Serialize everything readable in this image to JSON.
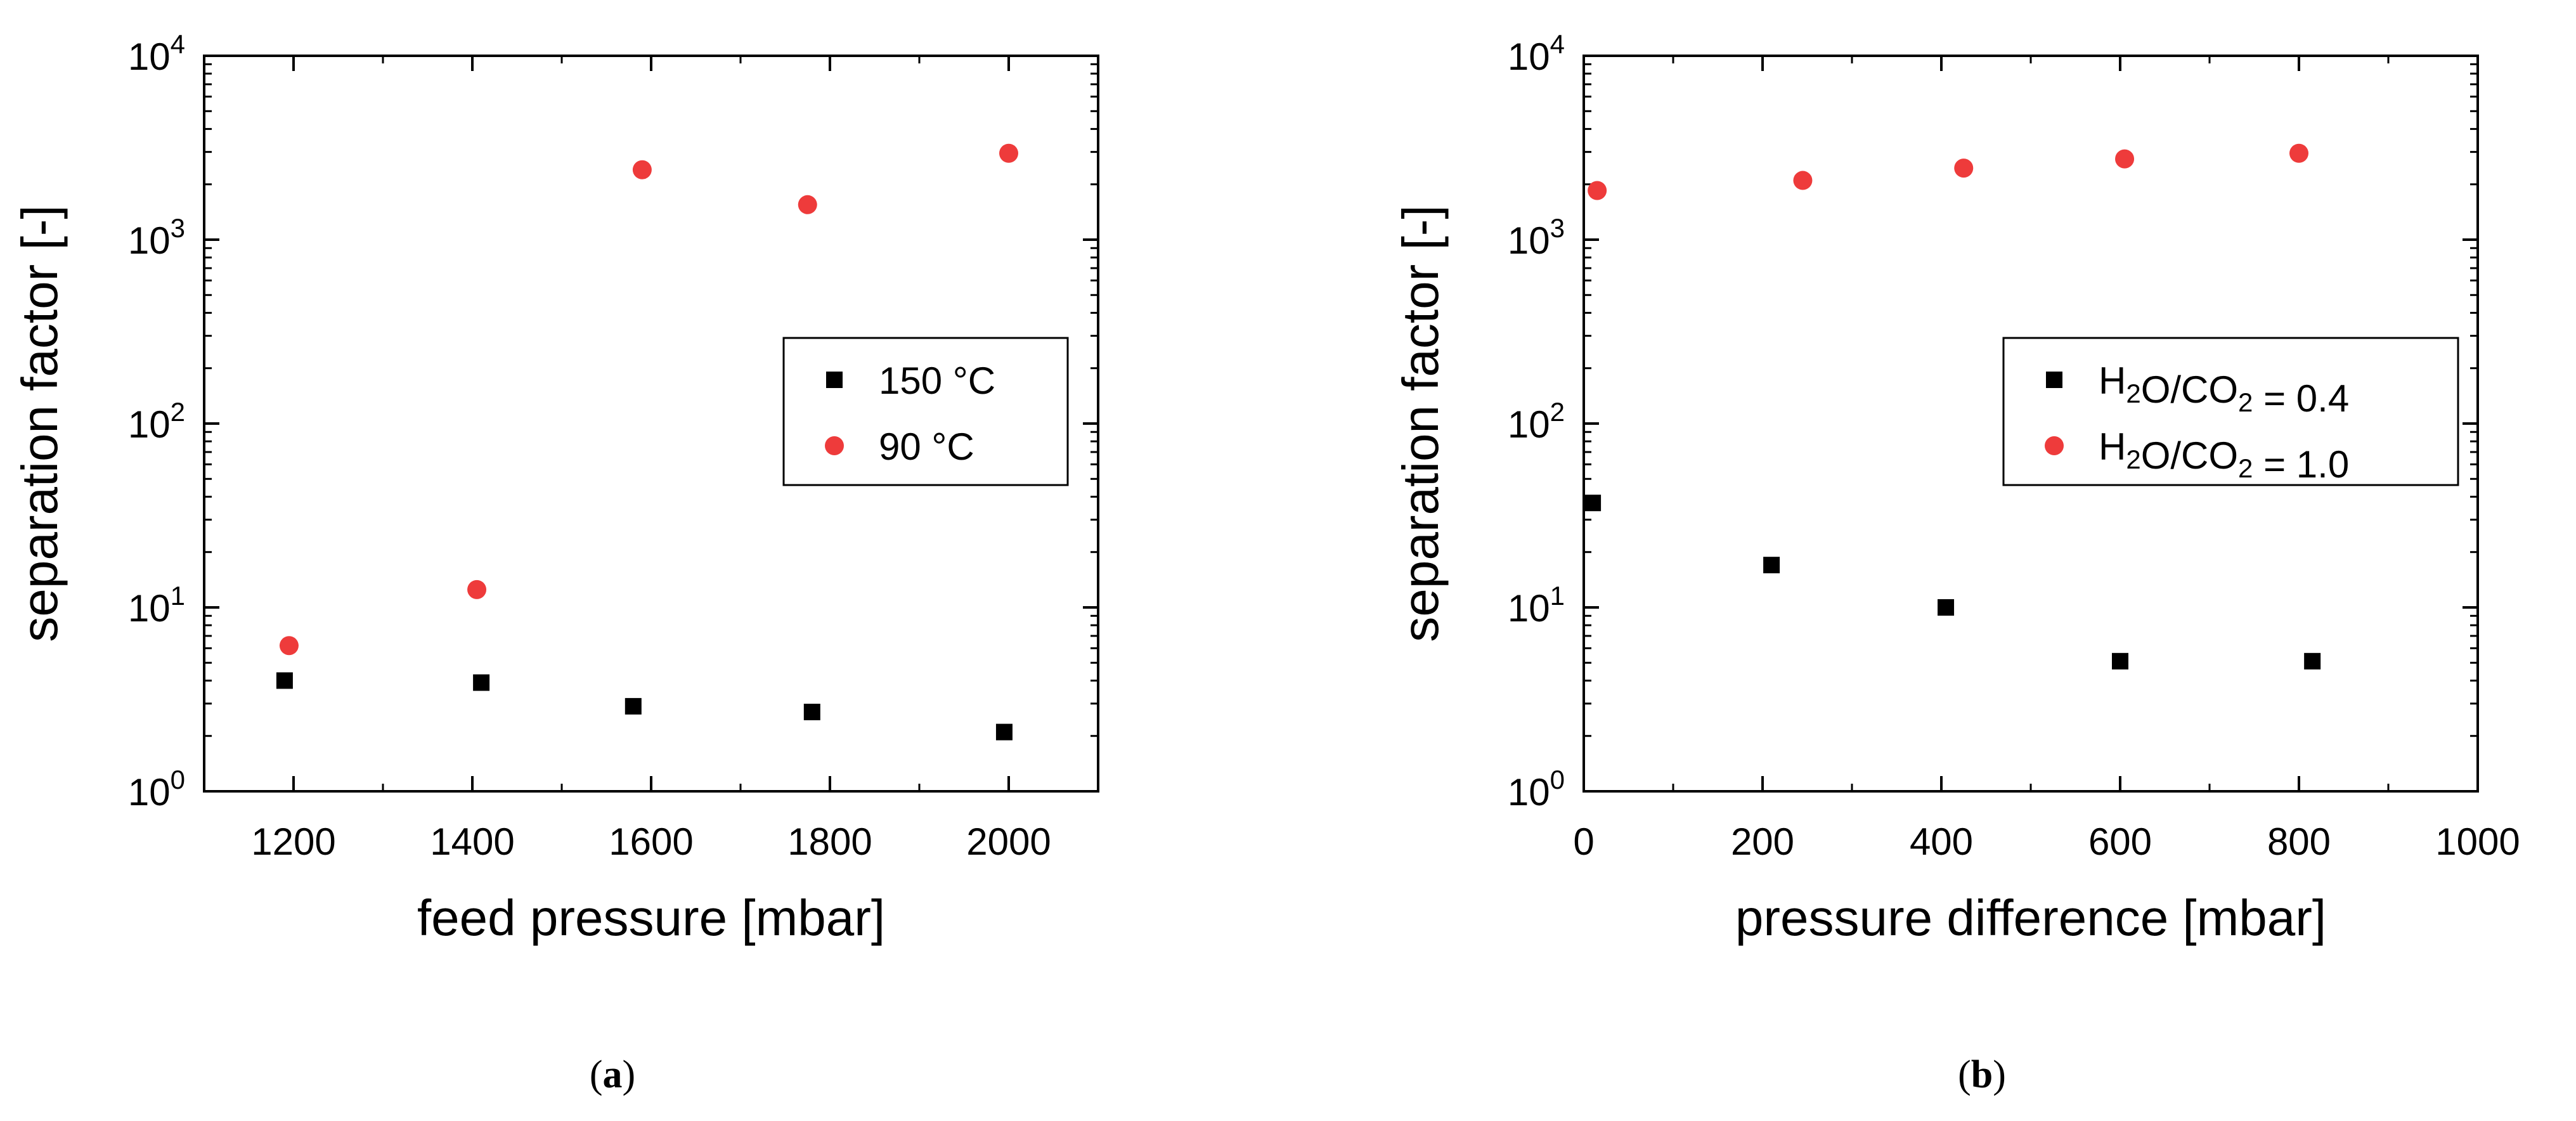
{
  "chart_data": [
    {
      "type": "scatter",
      "panel": "(a)",
      "caption_letter": "a",
      "xlabel": "feed pressure [mbar]",
      "ylabel": "separation factor [-]",
      "xlim": [
        1100,
        2100
      ],
      "ylim": [
        1,
        10000
      ],
      "yscale": "log",
      "xticks": [
        1200,
        1400,
        1600,
        1800,
        2000
      ],
      "yticks": [
        {
          "value": 1,
          "base": "10",
          "exp": "0"
        },
        {
          "value": 10,
          "base": "10",
          "exp": "1"
        },
        {
          "value": 100,
          "base": "10",
          "exp": "2"
        },
        {
          "value": 1000,
          "base": "10",
          "exp": "3"
        },
        {
          "value": 10000,
          "base": "10",
          "exp": "4"
        }
      ],
      "legend_position": "middle-right",
      "series": [
        {
          "name": "150 °C",
          "legend": [
            {
              "t": "150 °C"
            }
          ],
          "marker": "square",
          "color": "#000000",
          "x": [
            1190,
            1410,
            1580,
            1780,
            1995
          ],
          "y": [
            4.0,
            3.9,
            2.9,
            2.7,
            2.1
          ]
        },
        {
          "name": "90 °C",
          "legend": [
            {
              "t": "90 °C"
            }
          ],
          "marker": "circle",
          "color": "#ee3b3b",
          "x": [
            1195,
            1405,
            1590,
            1775,
            2000
          ],
          "y": [
            6.2,
            12.5,
            2400,
            1550,
            2950
          ]
        }
      ]
    },
    {
      "type": "scatter",
      "panel": "(b)",
      "caption_letter": "b",
      "xlabel": "pressure difference [mbar]",
      "ylabel": "separation factor [-]",
      "xlim": [
        0,
        1000
      ],
      "ylim": [
        1,
        10000
      ],
      "yscale": "log",
      "xticks": [
        0,
        200,
        400,
        600,
        800,
        1000
      ],
      "yticks": [
        {
          "value": 1,
          "base": "10",
          "exp": "0"
        },
        {
          "value": 10,
          "base": "10",
          "exp": "1"
        },
        {
          "value": 100,
          "base": "10",
          "exp": "2"
        },
        {
          "value": 1000,
          "base": "10",
          "exp": "3"
        },
        {
          "value": 10000,
          "base": "10",
          "exp": "4"
        }
      ],
      "legend_position": "middle-right",
      "series": [
        {
          "name": "H2O/CO2 = 0.4",
          "legend": [
            {
              "t": "H"
            },
            {
              "t": "2",
              "sub": true
            },
            {
              "t": "O/CO"
            },
            {
              "t": "2",
              "sub": true
            },
            {
              "t": " = 0.4"
            }
          ],
          "marker": "square",
          "color": "#000000",
          "x": [
            10,
            210,
            405,
            600,
            815
          ],
          "y": [
            37,
            17,
            10,
            5.1,
            5.1
          ]
        },
        {
          "name": "H2O/CO2 = 1.0",
          "legend": [
            {
              "t": "H"
            },
            {
              "t": "2",
              "sub": true
            },
            {
              "t": "O/CO"
            },
            {
              "t": "2",
              "sub": true
            },
            {
              "t": " = 1.0"
            }
          ],
          "marker": "circle",
          "color": "#ee3b3b",
          "x": [
            15,
            245,
            425,
            605,
            800
          ],
          "y": [
            1850,
            2100,
            2450,
            2750,
            2950
          ]
        }
      ]
    }
  ]
}
